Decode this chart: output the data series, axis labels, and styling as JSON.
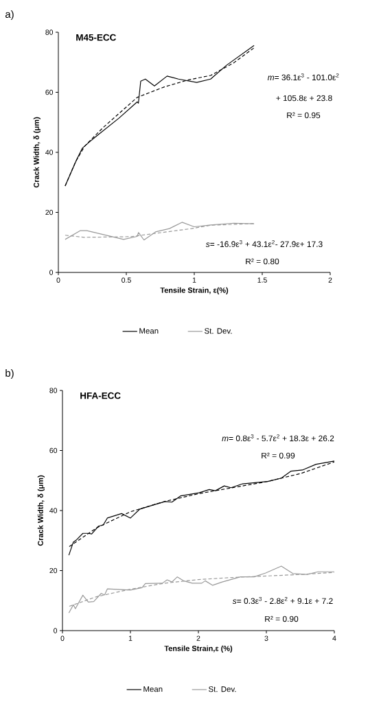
{
  "chart_data": [
    {
      "type": "line",
      "title": "M45-ECC",
      "xlabel": "Tensile Strain, ε(%)",
      "ylabel": "Crack Width, δ (μm)",
      "xlim": [
        0,
        2
      ],
      "xticks": [
        0,
        0.5,
        1,
        1.5,
        2
      ],
      "ylim": [
        0,
        80
      ],
      "yticks": [
        0,
        20,
        40,
        60,
        80
      ],
      "legend": "bottom",
      "annotations": [
        "a)",
        "*m*= 36.1ε$^{3}$ - 101.0ε$^{2}$",
        "+ 105.8ε + 23.8",
        "R² = 0.95",
        "*s*= -16.9ε$^{3}$ + 43.1ε$^{2}$- 27.9ε+ 17.3",
        "R² = 0.80"
      ],
      "series": [
        {
          "name": "Mean",
          "color": "#000000",
          "line_style": "solid",
          "x": [
            0.05,
            0.135,
            0.177,
            0.227,
            0.278,
            0.446,
            0.58,
            0.589,
            0.606,
            0.64,
            0.707,
            0.8,
            0.884,
            1.018,
            1.12,
            1.237,
            1.44
          ],
          "values": [
            28.8,
            37.6,
            41.4,
            43.4,
            45.3,
            51.4,
            56.8,
            56.4,
            63.7,
            64.4,
            62.1,
            65.4,
            64.4,
            63.3,
            64.4,
            69.0,
            75.6
          ]
        },
        {
          "name": "St. Dev.",
          "color": "#999999",
          "line_style": "solid",
          "x": [
            0.05,
            0.16,
            0.21,
            0.48,
            0.58,
            0.59,
            0.63,
            0.715,
            0.817,
            0.91,
            1.0,
            1.12,
            1.29,
            1.44
          ],
          "values": [
            11.0,
            13.9,
            13.9,
            11.0,
            12.0,
            13.3,
            10.8,
            13.5,
            14.6,
            16.7,
            15.2,
            15.8,
            16.4,
            16.2
          ]
        },
        {
          "color": "#000000",
          "line_style": "dashed",
          "x": [
            0.05,
            0.126,
            0.194,
            0.328,
            0.58,
            0.78,
            0.953,
            1.12,
            1.29,
            1.44
          ],
          "values": [
            28.8,
            36.8,
            42.1,
            48.2,
            58.3,
            61.8,
            64.1,
            65.6,
            69.8,
            74.8
          ]
        },
        {
          "color": "#999999",
          "line_style": "dashed",
          "x": [
            0.05,
            0.19,
            0.53,
            0.98,
            1.12,
            1.44
          ],
          "values": [
            12.4,
            11.7,
            11.9,
            14.6,
            15.7,
            16.3
          ]
        }
      ]
    },
    {
      "type": "line",
      "title": "HFA-ECC",
      "xlabel": "Tensile Strain,ε (%)",
      "ylabel": "Crack Width, δ (μm)",
      "xlim": [
        0,
        4
      ],
      "xticks": [
        0,
        1,
        2,
        3,
        4
      ],
      "ylim": [
        0,
        80
      ],
      "yticks": [
        0,
        20,
        40,
        60,
        80
      ],
      "legend": "bottom",
      "annotations": [
        "b)",
        "*m*= 0.8ε$^{3}$ - 5.7ε$^{2}$ + 18.3ε + 26.2",
        "R² = 0.99",
        "*s*= 0.3ε$^{3}$ - 2.8ε$^{2}$ + 9.1ε + 7.2",
        "R² = 0.90"
      ],
      "series": [
        {
          "name": "Mean",
          "color": "#000000",
          "line_style": "solid",
          "x": [
            0.094,
            0.16,
            0.21,
            0.3,
            0.38,
            0.43,
            0.53,
            0.6,
            0.66,
            0.87,
            1.0,
            1.14,
            1.37,
            1.51,
            1.61,
            1.74,
            2.01,
            2.16,
            2.25,
            2.38,
            2.48,
            2.65,
            3.02,
            3.22,
            3.36,
            3.53,
            3.73,
            4.0
          ],
          "values": [
            25.1,
            29.5,
            30.3,
            32.4,
            32.4,
            32.2,
            34.8,
            35.2,
            37.5,
            39.0,
            37.5,
            40.5,
            42.1,
            43.0,
            42.8,
            44.9,
            45.9,
            47.0,
            46.6,
            48.2,
            47.6,
            48.9,
            49.7,
            50.8,
            53.1,
            53.5,
            55.4,
            56.5
          ]
        },
        {
          "name": "St. Dev.",
          "color": "#999999",
          "line_style": "solid",
          "x": [
            0.094,
            0.16,
            0.19,
            0.3,
            0.38,
            0.46,
            0.57,
            0.62,
            0.66,
            1.0,
            1.17,
            1.22,
            1.47,
            1.54,
            1.61,
            1.69,
            1.78,
            1.91,
            2.05,
            2.1,
            2.21,
            2.35,
            2.62,
            2.82,
            2.99,
            3.22,
            3.39,
            3.6,
            3.76,
            4.0
          ],
          "values": [
            5.9,
            8.6,
            7.3,
            11.8,
            9.5,
            9.7,
            12.4,
            11.9,
            13.9,
            13.5,
            14.3,
            15.7,
            15.8,
            16.9,
            16.2,
            17.9,
            16.6,
            15.8,
            15.8,
            16.6,
            15.1,
            16.2,
            17.9,
            17.9,
            19.2,
            21.5,
            19.0,
            18.7,
            19.6,
            19.6
          ]
        },
        {
          "color": "#000000",
          "line_style": "dashed",
          "x": [
            0.1,
            0.5,
            1.0,
            1.5,
            2.0,
            2.5,
            3.0,
            3.5,
            4.0
          ],
          "values": [
            28.0,
            34.2,
            39.6,
            43.0,
            45.6,
            47.6,
            49.6,
            52.3,
            56.2
          ]
        },
        {
          "color": "#999999",
          "line_style": "dashed",
          "x": [
            0.1,
            0.5,
            1.0,
            1.5,
            2.0,
            2.5,
            3.0,
            3.5,
            4.0
          ],
          "values": [
            8.1,
            11.3,
            13.8,
            15.8,
            17.0,
            17.7,
            18.2,
            18.7,
            19.4
          ]
        }
      ]
    }
  ]
}
